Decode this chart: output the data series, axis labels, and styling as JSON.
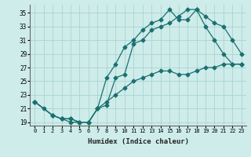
{
  "xlabel": "Humidex (Indice chaleur)",
  "bg_color": "#ceecea",
  "grid_color": "#aad4d0",
  "line_color": "#1a7070",
  "xlim": [
    -0.5,
    23.5
  ],
  "ylim": [
    18.5,
    36.2
  ],
  "xticks": [
    0,
    1,
    2,
    3,
    4,
    5,
    6,
    7,
    8,
    9,
    10,
    11,
    12,
    13,
    14,
    15,
    16,
    17,
    18,
    19,
    20,
    21,
    22,
    23
  ],
  "yticks": [
    19,
    21,
    23,
    25,
    27,
    29,
    31,
    33,
    35
  ],
  "line1_x": [
    0,
    1,
    2,
    3,
    4,
    5,
    6,
    7,
    8,
    9,
    10,
    11,
    12,
    13,
    14,
    15,
    16,
    17,
    18,
    19,
    20,
    21,
    22,
    23
  ],
  "line1_y": [
    22,
    21,
    20,
    19.5,
    19,
    19,
    19,
    21,
    21.5,
    25.5,
    26,
    30.5,
    31,
    32.5,
    33,
    33.5,
    34.5,
    35.5,
    35.5,
    34.5,
    33.5,
    33,
    31,
    29
  ],
  "line2_x": [
    0,
    2,
    3,
    4,
    5,
    6,
    7,
    8,
    9,
    10,
    11,
    12,
    13,
    14,
    15,
    16,
    17,
    18,
    19,
    20,
    21,
    22,
    23
  ],
  "line2_y": [
    22,
    20,
    19.5,
    19.5,
    19,
    19,
    21,
    22,
    23,
    24,
    25,
    25.5,
    26,
    26.5,
    26.5,
    26,
    26,
    26.5,
    27,
    27,
    27.5,
    27.5,
    27.5
  ],
  "line3_x": [
    0,
    2,
    3,
    4,
    5,
    6,
    7,
    8,
    9,
    10,
    11,
    12,
    13,
    14,
    15,
    16,
    17,
    18,
    19,
    20,
    21,
    22,
    23
  ],
  "line3_y": [
    22,
    20,
    19.5,
    19.5,
    19,
    19,
    21,
    25.5,
    27.5,
    30,
    31,
    32.5,
    33.5,
    34,
    35.5,
    34,
    34,
    35.5,
    33,
    31,
    29,
    27.5,
    27.5
  ]
}
